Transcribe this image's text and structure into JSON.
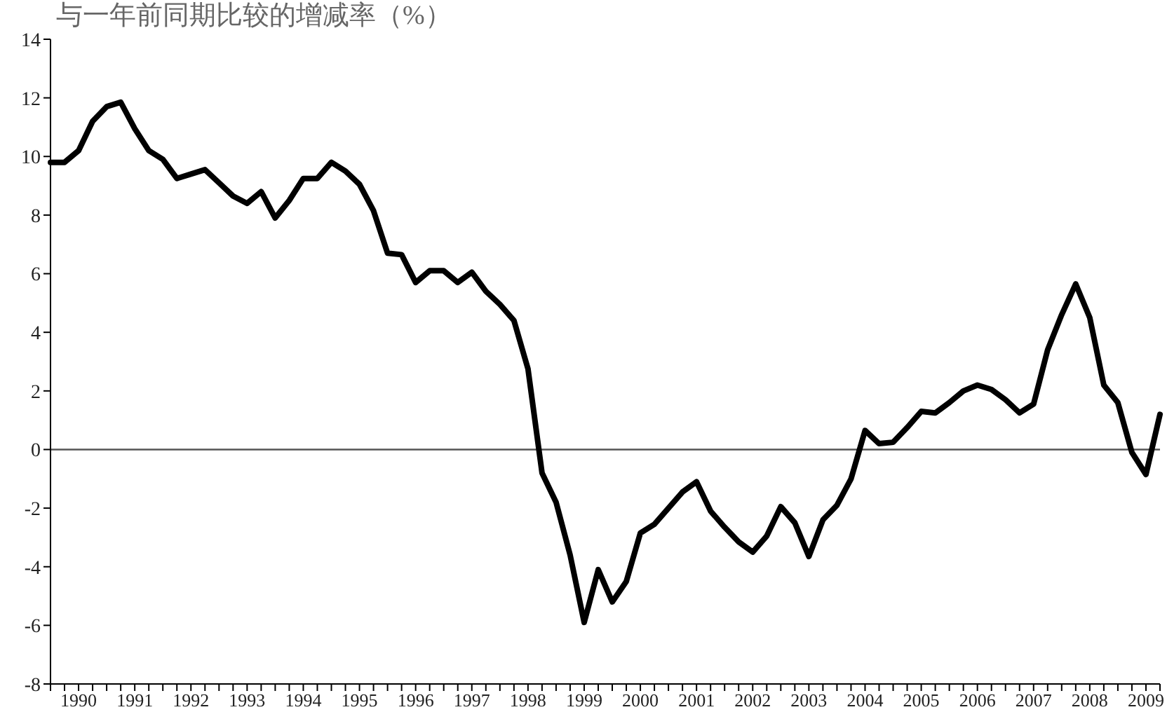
{
  "chart_data": {
    "type": "line",
    "title": "与一年前同期比较的增减率（%）",
    "categories": [
      null,
      null,
      "1990",
      null,
      null,
      null,
      "1991",
      null,
      null,
      null,
      "1992",
      null,
      null,
      null,
      "1993",
      null,
      null,
      null,
      "1994",
      null,
      null,
      null,
      "1995",
      null,
      null,
      null,
      "1996",
      null,
      null,
      null,
      "1997",
      null,
      null,
      null,
      "1998",
      null,
      null,
      null,
      "1999",
      null,
      null,
      null,
      "2000",
      null,
      null,
      null,
      "2001",
      null,
      null,
      null,
      "2002",
      null,
      null,
      null,
      "2003",
      null,
      null,
      null,
      "2004",
      null,
      null,
      null,
      "2005",
      null,
      null,
      null,
      "2006",
      null,
      null,
      null,
      "2007",
      null,
      null,
      null,
      "2008",
      null,
      null,
      null,
      "2009",
      null
    ],
    "series": [
      {
        "color": "#000000",
        "values": [
          9.8,
          9.8,
          10.2,
          11.2,
          11.7,
          11.85,
          10.95,
          10.2,
          9.9,
          9.25,
          9.4,
          9.55,
          9.1,
          8.65,
          8.4,
          8.8,
          7.9,
          8.5,
          9.25,
          9.25,
          9.8,
          9.5,
          9.05,
          8.15,
          6.7,
          6.65,
          5.7,
          6.1,
          6.1,
          5.7,
          6.05,
          5.4,
          4.95,
          4.4,
          2.75,
          -0.8,
          -1.8,
          -3.6,
          -5.9,
          -4.1,
          -5.2,
          -4.5,
          -2.85,
          -2.55,
          -2.0,
          -1.45,
          -1.1,
          -2.1,
          -2.65,
          -3.15,
          -3.5,
          -2.95,
          -1.95,
          -2.5,
          -3.65,
          -2.4,
          -1.9,
          -1.0,
          0.65,
          0.2,
          0.25,
          0.75,
          1.3,
          1.25,
          1.6,
          2.0,
          2.2,
          2.05,
          1.7,
          1.25,
          1.55,
          3.4,
          4.6,
          5.65,
          4.5,
          2.2,
          1.6,
          -0.1,
          -0.85,
          1.2
        ]
      }
    ],
    "ylim": [
      -8,
      14
    ],
    "yticks": [
      -8,
      -6,
      -4,
      -2,
      0,
      2,
      4,
      6,
      8,
      10,
      12,
      14
    ],
    "ref_lines": [
      {
        "axis": "y",
        "value": 0,
        "color": "#555555"
      }
    ],
    "grid": false,
    "legend": false,
    "marker": "none",
    "line_style": "solid"
  }
}
